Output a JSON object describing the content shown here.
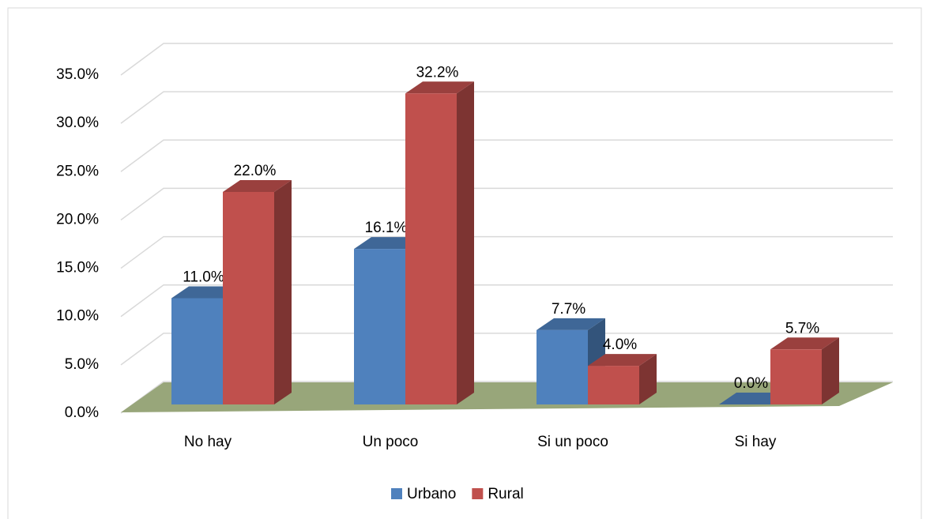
{
  "chart_data": {
    "type": "bar3d",
    "categories": [
      "No hay",
      "Un poco",
      "Si un poco",
      "Si hay"
    ],
    "series": [
      {
        "name": "Urbano",
        "color": "#4f81bd",
        "values": [
          11.0,
          16.1,
          7.7,
          0.0
        ],
        "value_labels": [
          "11.0%",
          "16.1%",
          "7.7%",
          "0.0%"
        ]
      },
      {
        "name": "Rural",
        "color": "#c0504d",
        "values": [
          22.0,
          32.2,
          4.0,
          5.7
        ],
        "value_labels": [
          "22.0%",
          "32.2%",
          "4.0%",
          "5.7%"
        ]
      }
    ],
    "ylim": [
      0,
      35
    ],
    "yticks": [
      {
        "value": 0,
        "label": "0.0%"
      },
      {
        "value": 5,
        "label": "5.0%"
      },
      {
        "value": 10,
        "label": "10.0%"
      },
      {
        "value": 15,
        "label": "15.0%"
      },
      {
        "value": 20,
        "label": "20.0%"
      },
      {
        "value": 25,
        "label": "25.0%"
      },
      {
        "value": 30,
        "label": "30.0%"
      },
      {
        "value": 35,
        "label": "35.0%"
      }
    ],
    "grid": true,
    "legend": "bottom"
  }
}
